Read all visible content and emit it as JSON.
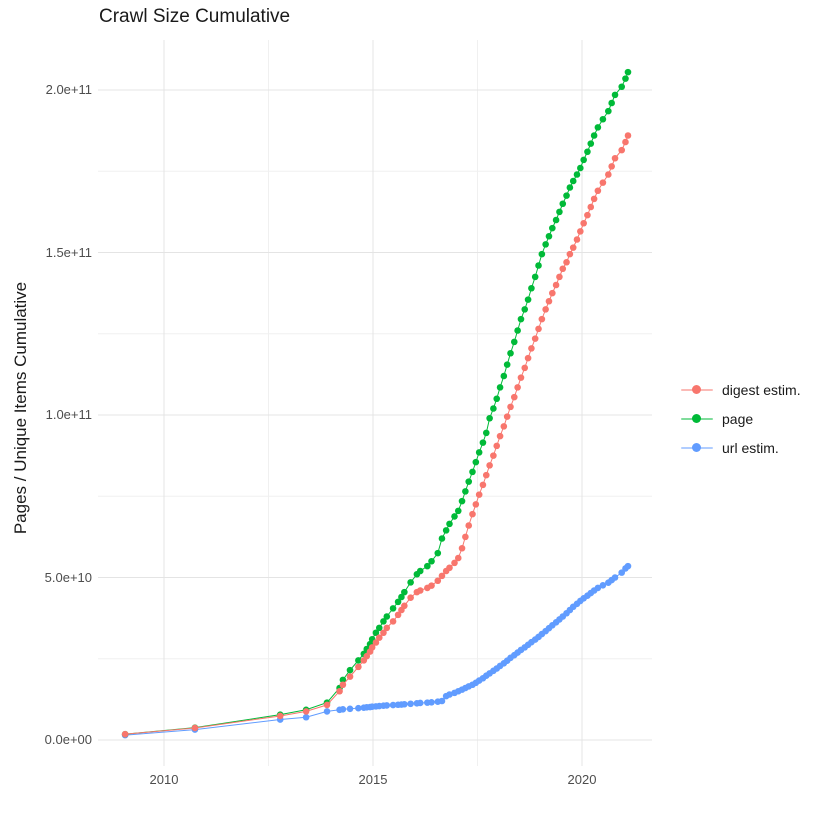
{
  "title": "Crawl Size Cumulative",
  "y_axis_title": "Pages / Unique Items Cumulative",
  "x_ticks": [
    {
      "value": 2010,
      "label": "2010"
    },
    {
      "value": 2015,
      "label": "2015"
    },
    {
      "value": 2020,
      "label": "2020"
    }
  ],
  "y_ticks": [
    {
      "value_billions": 200,
      "label": "2.0e+11"
    },
    {
      "value_billions": 150,
      "label": "1.5e+11"
    },
    {
      "value_billions": 100,
      "label": "1.0e+11"
    },
    {
      "value_billions": 50,
      "label": "5.0e+10"
    },
    {
      "value_billions": 0,
      "label": "0.0e+00"
    }
  ],
  "legend": [
    {
      "label": "digest estim.",
      "color": "#F8766D"
    },
    {
      "label": "page",
      "color": "#00BA38"
    },
    {
      "label": "url estim.",
      "color": "#619CFF"
    }
  ],
  "colors": {
    "grid_major": "#e4e4e4",
    "grid_minor": "#f0f0f0",
    "axis_text": "#4d4d4d",
    "title_text": "#1a1a1a"
  },
  "chart_data": {
    "type": "scatter",
    "title": "Crawl Size Cumulative",
    "xlabel": "",
    "ylabel": "Pages / Unique Items Cumulative",
    "x_unit": "year (decimal, one point per crawl)",
    "value_unit": "items, in billions (1e9)",
    "xlim": [
      2008.4,
      2021.7
    ],
    "ylim_billions": [
      0,
      215
    ],
    "grid": "on",
    "legend_position": "right",
    "x_minor_gridlines": [
      2012.5,
      2017.5
    ],
    "y_minor_gridlines_billions": [
      25,
      75,
      125,
      175
    ],
    "x": [
      2009.07,
      2010.74,
      2012.78,
      2013.4,
      2013.9,
      2014.2,
      2014.28,
      2014.45,
      2014.65,
      2014.78,
      2014.85,
      2014.93,
      2014.98,
      2015.07,
      2015.15,
      2015.25,
      2015.33,
      2015.48,
      2015.6,
      2015.68,
      2015.75,
      2015.9,
      2016.05,
      2016.13,
      2016.3,
      2016.4,
      2016.55,
      2016.65,
      2016.75,
      2016.83,
      2016.95,
      2017.04,
      2017.13,
      2017.21,
      2017.29,
      2017.38,
      2017.46,
      2017.54,
      2017.63,
      2017.71,
      2017.79,
      2017.88,
      2017.96,
      2018.04,
      2018.13,
      2018.21,
      2018.29,
      2018.38,
      2018.46,
      2018.54,
      2018.63,
      2018.71,
      2018.79,
      2018.88,
      2018.96,
      2019.04,
      2019.13,
      2019.21,
      2019.29,
      2019.38,
      2019.46,
      2019.54,
      2019.63,
      2019.71,
      2019.79,
      2019.88,
      2019.96,
      2020.04,
      2020.13,
      2020.21,
      2020.29,
      2020.38,
      2020.5,
      2020.63,
      2020.71,
      2020.79,
      2020.95,
      2021.04,
      2021.1
    ],
    "series": [
      {
        "name": "digest estim.",
        "color": "#F8766D",
        "values_billions": [
          1.8,
          3.7,
          7.4,
          8.8,
          10.8,
          15,
          17,
          19.5,
          22.5,
          24.5,
          25.8,
          27.2,
          28.5,
          30,
          31.5,
          33,
          34.5,
          36.5,
          38.5,
          40,
          41.3,
          43.8,
          45.5,
          46,
          46.8,
          47.5,
          49,
          50.5,
          52,
          53,
          54.5,
          56,
          59,
          62.5,
          66,
          69.5,
          72.5,
          75.5,
          78.5,
          81.5,
          84.5,
          87.5,
          90.5,
          93.5,
          96.5,
          99.5,
          102.5,
          105.5,
          108.5,
          111.5,
          114.5,
          117.5,
          120.5,
          123.5,
          126.5,
          129.5,
          132.5,
          135,
          137.5,
          140,
          142.5,
          145,
          147,
          149.5,
          151.5,
          154,
          156.5,
          159,
          161.5,
          164,
          166.5,
          169,
          171.5,
          174,
          176.5,
          179,
          181.5,
          184,
          186
        ]
      },
      {
        "name": "page",
        "color": "#00BA38",
        "values_billions": [
          1.8,
          3.8,
          7.8,
          9.3,
          11.5,
          16,
          18.5,
          21.5,
          24.5,
          26.5,
          28,
          29.5,
          31,
          33,
          34.5,
          36.5,
          38,
          40.5,
          42.5,
          44,
          45.5,
          48.5,
          51,
          52,
          53.5,
          55,
          57.5,
          62,
          64.5,
          66.5,
          68.8,
          70.5,
          73.5,
          76.5,
          79.5,
          82.5,
          85.5,
          88.5,
          91.5,
          94.5,
          99,
          102,
          105,
          108.5,
          112,
          115.5,
          119,
          122.5,
          126,
          129.5,
          132.5,
          135.5,
          139,
          142.5,
          146,
          149.5,
          152.5,
          155,
          157.5,
          160,
          162.5,
          165,
          167.5,
          170,
          172,
          174,
          176,
          178.5,
          181,
          183.5,
          186,
          188.5,
          191,
          193.5,
          196,
          198.5,
          201,
          203.5,
          205.5
        ]
      },
      {
        "name": "url estim.",
        "color": "#619CFF",
        "values_billions": [
          1.5,
          3.2,
          6.3,
          7.0,
          8.8,
          9.3,
          9.45,
          9.6,
          9.8,
          9.95,
          10.05,
          10.15,
          10.25,
          10.35,
          10.45,
          10.55,
          10.65,
          10.75,
          10.85,
          10.9,
          11.0,
          11.15,
          11.3,
          11.4,
          11.5,
          11.6,
          11.8,
          12.0,
          13.5,
          14.0,
          14.5,
          15.0,
          15.5,
          16.0,
          16.5,
          17.0,
          17.6,
          18.3,
          19.0,
          19.8,
          20.5,
          21.3,
          22.0,
          22.8,
          23.6,
          24.4,
          25.3,
          26.1,
          26.9,
          27.7,
          28.5,
          29.3,
          30.1,
          30.9,
          31.7,
          32.6,
          33.5,
          34.4,
          35.3,
          36.2,
          37.1,
          38.0,
          39.0,
          40.0,
          41.0,
          41.9,
          42.8,
          43.6,
          44.4,
          45.2,
          46.0,
          46.8,
          47.6,
          48.4,
          49.2,
          50.0,
          51.5,
          52.8,
          53.5
        ]
      }
    ]
  }
}
